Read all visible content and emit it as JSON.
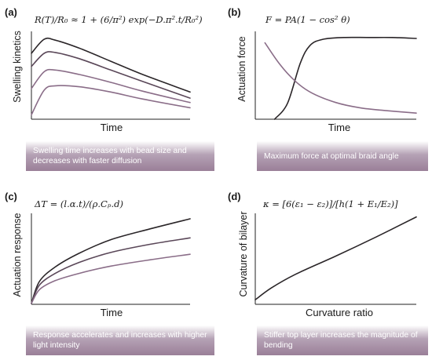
{
  "colors": {
    "dark": "#2a2528",
    "medium": "#5a4758",
    "light": "#8a6d88",
    "caption_bg": "#9a7f98",
    "caption_text": "#ffffff"
  },
  "chart_data": [
    {
      "label": "(a)",
      "type": "line",
      "equation": "R(T)/R₀ ≈ 1 + (6/π²) exp(−D.π².t/R₀²)",
      "xlabel": "Time",
      "ylabel": "Swelling kinetics",
      "xlim": [
        0,
        10
      ],
      "ylim": [
        0,
        10
      ],
      "caption": "Swelling time increases with bead size and decreases with faster diffusion",
      "series": [
        {
          "color": "dark",
          "x": [
            0,
            0.8,
            1.5,
            3,
            5,
            7,
            10
          ],
          "y": [
            7.5,
            9.1,
            9.0,
            8.1,
            6.6,
            5.1,
            3.1
          ]
        },
        {
          "color": "medium",
          "x": [
            0,
            0.8,
            1.5,
            3,
            5,
            7,
            10
          ],
          "y": [
            6.0,
            7.5,
            7.6,
            6.9,
            5.6,
            4.3,
            2.4
          ]
        },
        {
          "color": "light",
          "x": [
            0,
            0.8,
            1.5,
            3,
            5,
            7,
            10
          ],
          "y": [
            3.5,
            5.4,
            5.6,
            5.1,
            4.2,
            3.2,
            1.9
          ]
        },
        {
          "color": "light",
          "x": [
            0,
            0.8,
            1.5,
            3,
            5,
            7,
            10
          ],
          "y": [
            0.5,
            3.3,
            3.8,
            3.7,
            3.1,
            2.3,
            1.3
          ]
        }
      ]
    },
    {
      "label": "(b)",
      "type": "line",
      "equation": "F = PA(1 − cos² θ)",
      "xlabel": "Time",
      "ylabel": "Actuation force",
      "xlim": [
        0,
        10
      ],
      "ylim": [
        0,
        10
      ],
      "caption": "Maximum force at optimal braid angle",
      "series": [
        {
          "color": "dark",
          "x": [
            1.2,
            2,
            2.8,
            3.4,
            4.2,
            5.5,
            7,
            8.5,
            10
          ],
          "y": [
            0,
            1.8,
            6.4,
            8.4,
            9.1,
            9.3,
            9.3,
            9.3,
            9.2
          ]
        },
        {
          "color": "light",
          "x": [
            0.6,
            1.5,
            2.5,
            3.5,
            5,
            6.5,
            8,
            10
          ],
          "y": [
            8.7,
            6.3,
            4.3,
            3.0,
            1.9,
            1.3,
            1.0,
            0.7
          ]
        }
      ]
    },
    {
      "label": "(c)",
      "type": "line",
      "equation": "ΔT = (l.α.t)/(ρ.Cₚ.d)",
      "xlabel": "Time",
      "ylabel": "Actuation response",
      "xlim": [
        0,
        10
      ],
      "ylim": [
        0,
        10
      ],
      "caption": "Response accelerates and increases with higher light intensity",
      "series": [
        {
          "color": "dark",
          "x": [
            0,
            0.5,
            1.5,
            3,
            5,
            7.5,
            10
          ],
          "y": [
            0.1,
            2.5,
            4.1,
            5.6,
            7.1,
            8.3,
            9.4
          ]
        },
        {
          "color": "medium",
          "x": [
            0,
            0.5,
            1.5,
            3,
            5,
            7.5,
            10
          ],
          "y": [
            0.1,
            2.1,
            3.4,
            4.6,
            5.7,
            6.6,
            7.3
          ]
        },
        {
          "color": "light",
          "x": [
            0,
            0.5,
            1.5,
            3,
            5,
            7.5,
            10
          ],
          "y": [
            0.1,
            1.6,
            2.6,
            3.4,
            4.2,
            4.9,
            5.5
          ]
        }
      ]
    },
    {
      "label": "(d)",
      "type": "line",
      "equation": "κ = [6(ε₁ − ε₂)]/[h(1 + E₁/E₂)]",
      "xlabel": "Curvature ratio",
      "ylabel": "Curvature of bilayer",
      "xlim": [
        0,
        10
      ],
      "ylim": [
        0,
        10
      ],
      "caption": "Stiffer top layer increases the magnitude of bending",
      "series": [
        {
          "color": "dark",
          "x": [
            0,
            1,
            2.5,
            5,
            7.5,
            10
          ],
          "y": [
            0.5,
            1.8,
            3.3,
            5.3,
            7.4,
            9.6
          ]
        }
      ]
    }
  ]
}
